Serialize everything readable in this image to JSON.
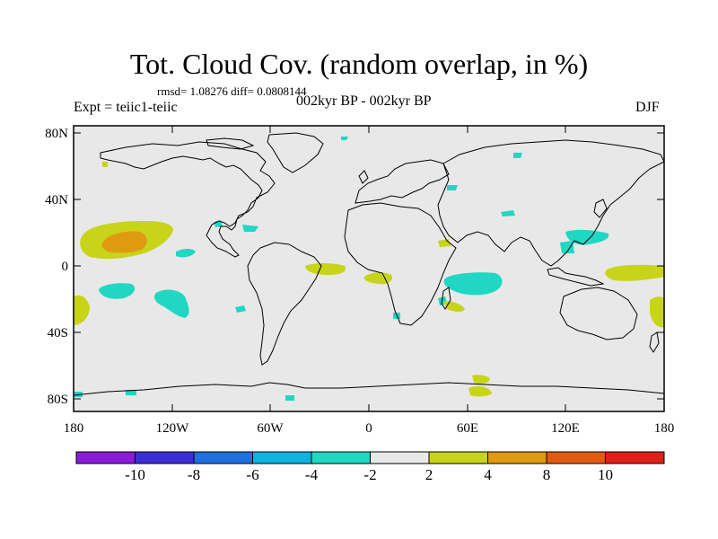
{
  "title": "Tot. Cloud Cov. (random overlap, in %)",
  "stats": "rmsd= 1.08276 diff= 0.0808144",
  "expt": "Expt = teiic1-teiic",
  "period": "002kyr BP - 002kyr BP",
  "season": "DJF",
  "lat_ticks": [
    "80N",
    "40N",
    "0",
    "40S",
    "80S"
  ],
  "lon_ticks": [
    "180",
    "120W",
    "60W",
    "0",
    "60E",
    "120E",
    "180"
  ],
  "colorbar": {
    "labels": [
      "-10",
      "-8",
      "-6",
      "-4",
      "-2",
      "2",
      "4",
      "8",
      "10"
    ],
    "colors": [
      "#8a1bd8",
      "#3a2fd6",
      "#1e6fe0",
      "#10b3e0",
      "#1fd7c2",
      "#e8e8e8",
      "#c8d41a",
      "#e09a10",
      "#e05a10",
      "#e0201a"
    ]
  },
  "colors": {
    "ocean": "#e8e8e8",
    "coast": "#000000",
    "neg_2_4": "#1fd7c2",
    "pos_2_4": "#c8d41a",
    "pos_4_8": "#e09a10"
  }
}
